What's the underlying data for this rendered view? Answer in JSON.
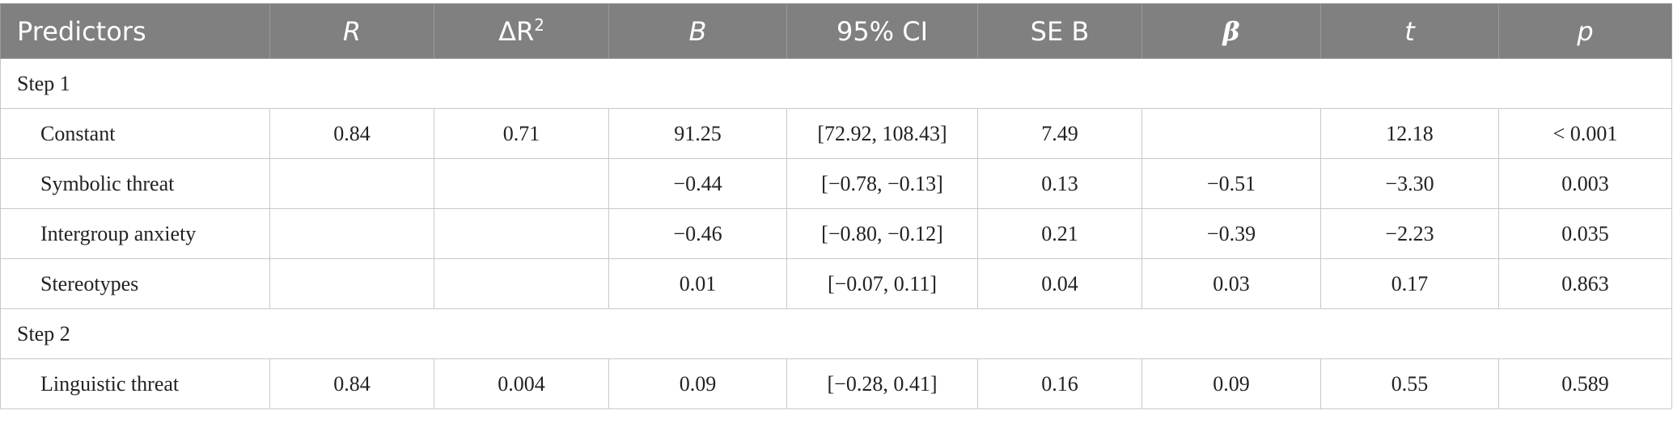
{
  "header": {
    "predictors": "Predictors",
    "r": "R",
    "delta_r2_base": "ΔR",
    "delta_r2_sup": "2",
    "b": "B",
    "ci": "95% CI",
    "se_b": "SE B",
    "beta": "β",
    "t": "t",
    "p": "p"
  },
  "rows": [
    {
      "step": "Step 1"
    },
    {
      "predictor": "Constant",
      "r": "0.84",
      "dr2": "0.71",
      "b": "91.25",
      "ci": "[72.92, 108.43]",
      "se": "7.49",
      "beta": "",
      "t": "12.18",
      "p": "< 0.001"
    },
    {
      "predictor": "Symbolic threat",
      "r": "",
      "dr2": "",
      "b": "−0.44",
      "ci": "[−0.78, −0.13]",
      "se": "0.13",
      "beta": "−0.51",
      "t": "−3.30",
      "p": "0.003"
    },
    {
      "predictor": "Intergroup anxiety",
      "r": "",
      "dr2": "",
      "b": "−0.46",
      "ci": "[−0.80, −0.12]",
      "se": "0.21",
      "beta": "−0.39",
      "t": "−2.23",
      "p": "0.035"
    },
    {
      "predictor": "Stereotypes",
      "r": "",
      "dr2": "",
      "b": "0.01",
      "ci": "[−0.07, 0.11]",
      "se": "0.04",
      "beta": "0.03",
      "t": "0.17",
      "p": "0.863"
    },
    {
      "step": "Step 2"
    },
    {
      "predictor": "Linguistic threat",
      "r": "0.84",
      "dr2": "0.004",
      "b": "0.09",
      "ci": "[−0.28, 0.41]",
      "se": "0.16",
      "beta": "0.09",
      "t": "0.55",
      "p": "0.589"
    }
  ]
}
